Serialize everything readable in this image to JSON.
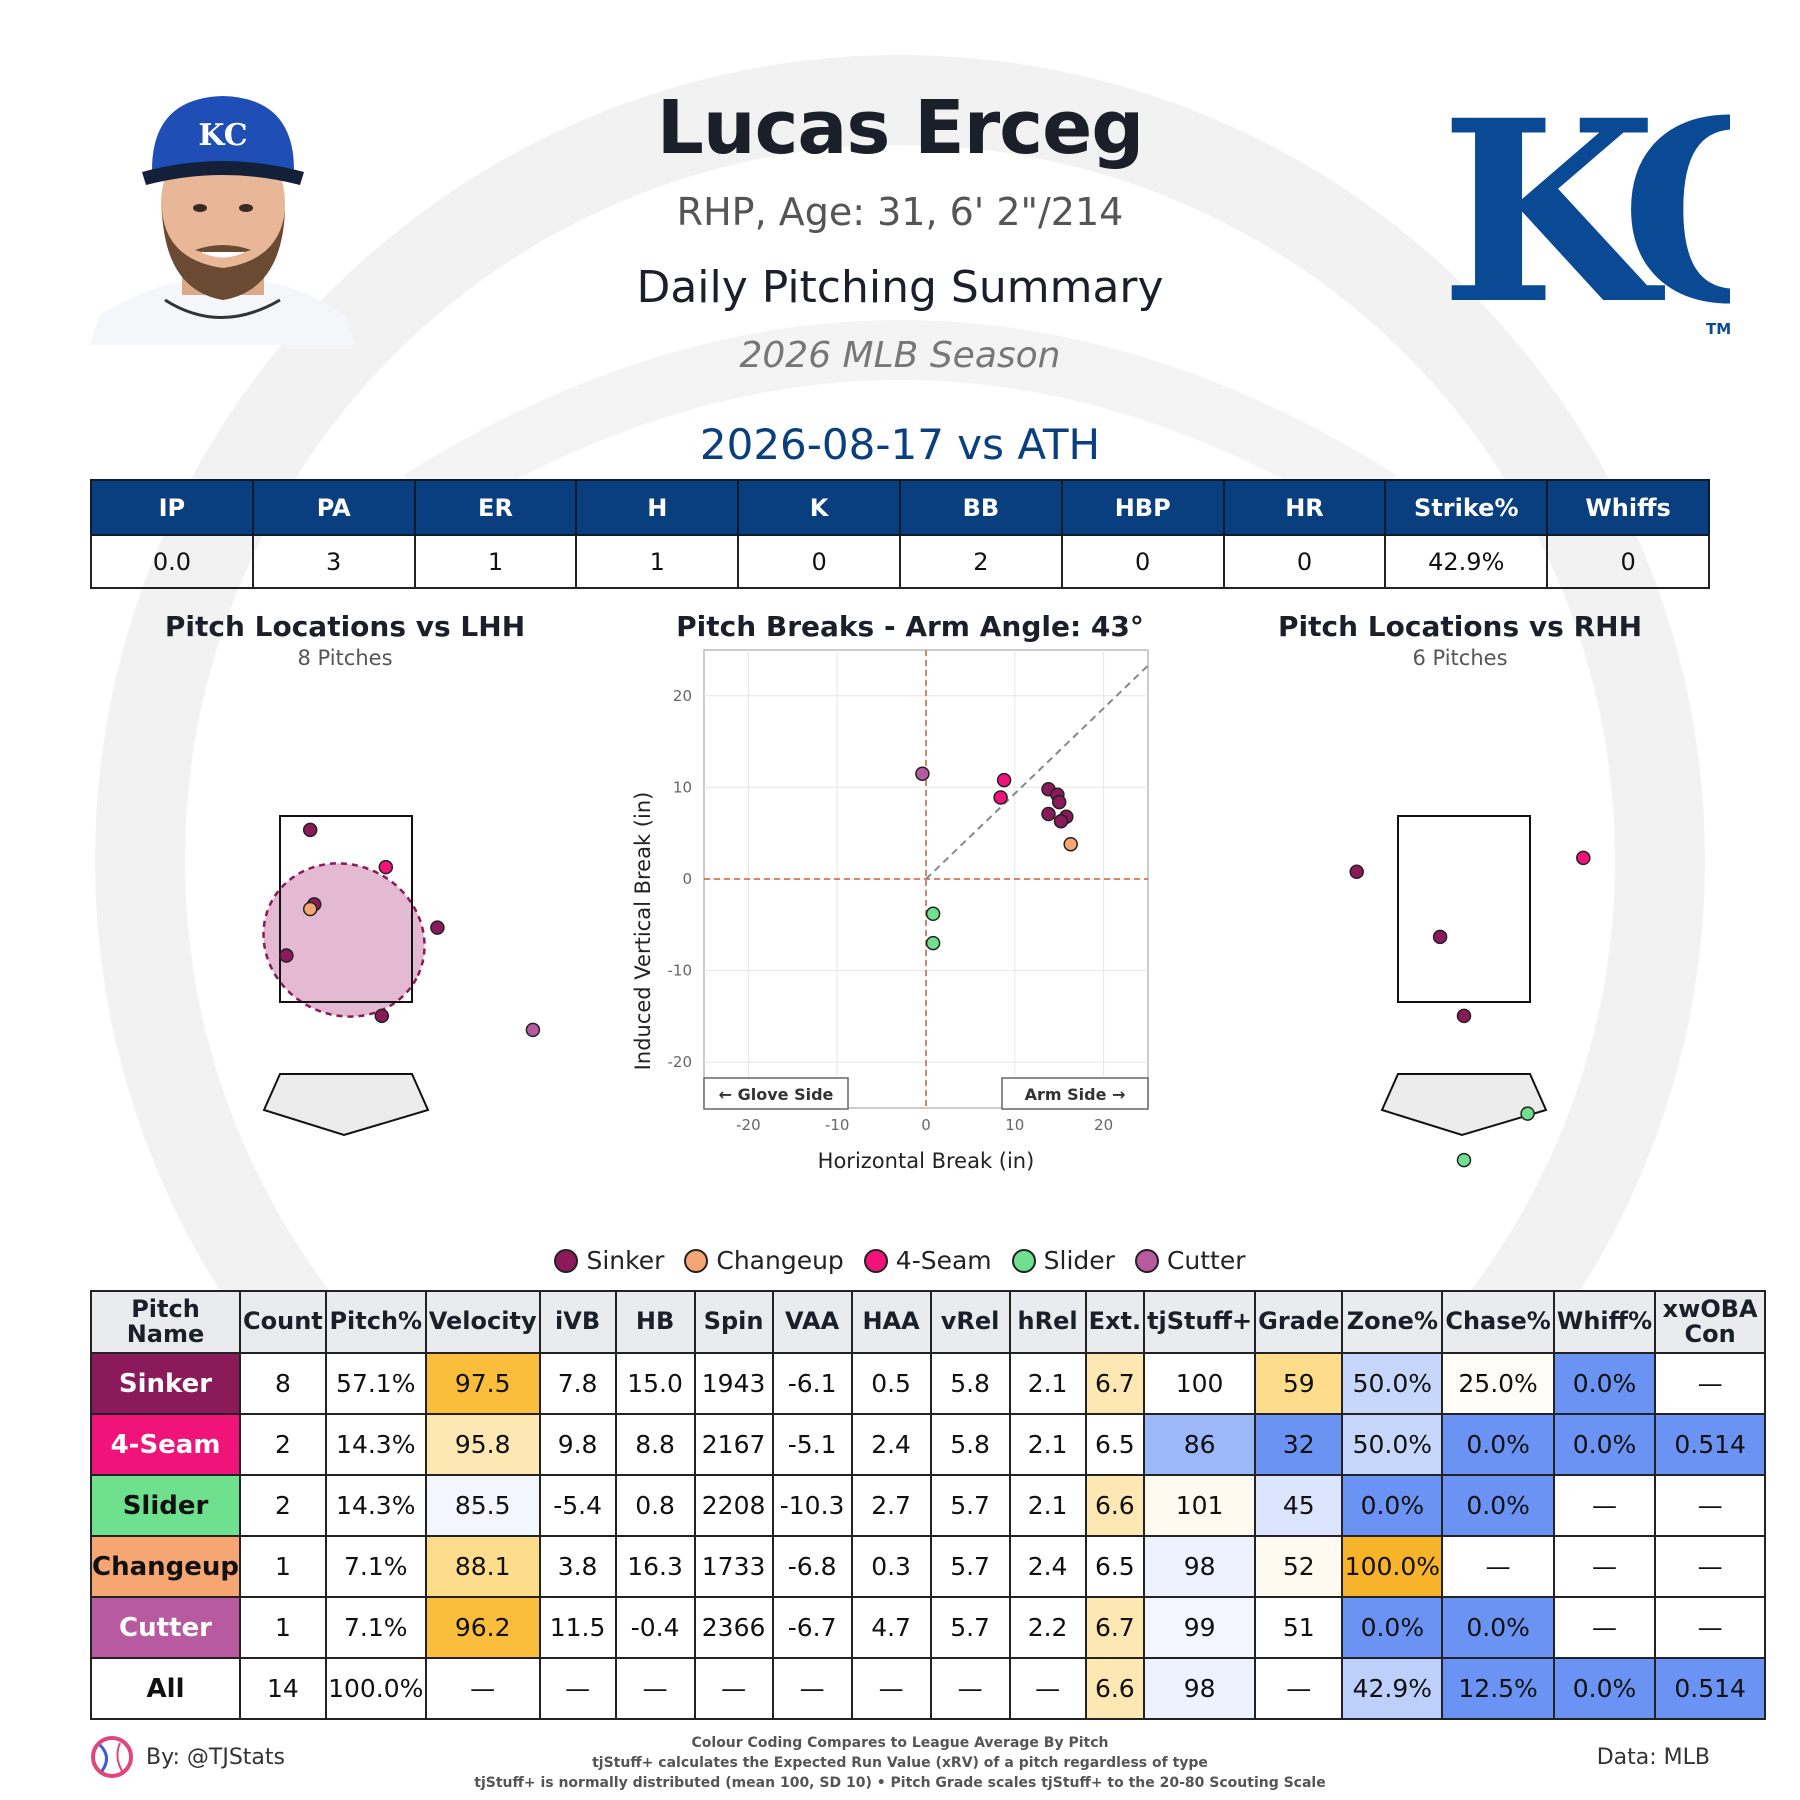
{
  "header": {
    "name": "Lucas Erceg",
    "info": "RHP, Age: 31, 6' 2\"/214",
    "title": "Daily Pitching Summary",
    "season": "2026 MLB Season",
    "game": "2026-08-17 vs ATH",
    "logo_text": "KC",
    "logo_tm": "TM",
    "cap_text": "KC"
  },
  "colors": {
    "primary": "#0a3f7f",
    "sinker": "#8b1a5a",
    "changeup": "#f5a672",
    "fourseam": "#f0147a",
    "slider": "#6fe08e",
    "cutter": "#b85aa0"
  },
  "game_stats": {
    "headers": [
      "IP",
      "PA",
      "ER",
      "H",
      "K",
      "BB",
      "HBP",
      "HR",
      "Strike%",
      "Whiffs"
    ],
    "values": [
      "0.0",
      "3",
      "1",
      "1",
      "0",
      "2",
      "0",
      "0",
      "42.9%",
      "0"
    ]
  },
  "panels": {
    "lhh_title": "Pitch Locations vs LHH",
    "lhh_sub": "8 Pitches",
    "breaks_title": "Pitch Breaks - Arm Angle: 43°",
    "rhh_title": "Pitch Locations vs RHH",
    "rhh_sub": "6 Pitches"
  },
  "chart_data": [
    {
      "type": "scatter",
      "title": "Pitch Locations vs LHH",
      "subtitle": "8 Pitches",
      "points": [
        {
          "pitch": "Sinker",
          "x": -0.45,
          "y": 3.35
        },
        {
          "pitch": "Sinker",
          "x": -0.4,
          "y": 2.55
        },
        {
          "pitch": "Sinker",
          "x": -0.75,
          "y": 2.0
        },
        {
          "pitch": "Sinker",
          "x": 1.15,
          "y": 2.3
        },
        {
          "pitch": "Sinker",
          "x": 0.45,
          "y": 1.35
        },
        {
          "pitch": "4-Seam",
          "x": 0.5,
          "y": 2.95
        },
        {
          "pitch": "Changeup",
          "x": -0.45,
          "y": 2.5
        },
        {
          "pitch": "Cutter",
          "x": 2.35,
          "y": 1.2
        }
      ]
    },
    {
      "type": "scatter",
      "title": "Pitch Breaks - Arm Angle: 43°",
      "xlabel": "Horizontal Break (in)",
      "ylabel": "Induced Vertical Break (in)",
      "xlim": [
        -25,
        25
      ],
      "ylim": [
        -25,
        25
      ],
      "xticks": [
        -20,
        -10,
        0,
        10,
        20
      ],
      "yticks": [
        20,
        10,
        0,
        -10,
        -20
      ],
      "annotations": [
        "← Glove Side",
        "Arm Side →"
      ],
      "points": [
        {
          "pitch": "Cutter",
          "x": -0.4,
          "y": 11.5
        },
        {
          "pitch": "4-Seam",
          "x": 8.8,
          "y": 10.8
        },
        {
          "pitch": "4-Seam",
          "x": 8.4,
          "y": 8.9
        },
        {
          "pitch": "Sinker",
          "x": 13.8,
          "y": 9.8
        },
        {
          "pitch": "Sinker",
          "x": 14.8,
          "y": 9.2
        },
        {
          "pitch": "Sinker",
          "x": 15.0,
          "y": 8.4
        },
        {
          "pitch": "Sinker",
          "x": 15.8,
          "y": 6.8
        },
        {
          "pitch": "Sinker",
          "x": 13.8,
          "y": 7.1
        },
        {
          "pitch": "Sinker",
          "x": 15.2,
          "y": 6.3
        },
        {
          "pitch": "Changeup",
          "x": 16.3,
          "y": 3.8
        },
        {
          "pitch": "Slider",
          "x": 0.8,
          "y": -3.8
        },
        {
          "pitch": "Slider",
          "x": 0.8,
          "y": -7.0
        }
      ]
    },
    {
      "type": "scatter",
      "title": "Pitch Locations vs RHH",
      "subtitle": "6 Pitches",
      "points": [
        {
          "pitch": "Sinker",
          "x": -1.35,
          "y": 2.9
        },
        {
          "pitch": "Sinker",
          "x": -0.3,
          "y": 2.2
        },
        {
          "pitch": "Sinker",
          "x": 0.0,
          "y": 1.35
        },
        {
          "pitch": "4-Seam",
          "x": 1.5,
          "y": 3.05
        },
        {
          "pitch": "Slider",
          "x": 0.8,
          "y": 0.3
        },
        {
          "pitch": "Slider",
          "x": 0.0,
          "y": -0.2
        }
      ]
    }
  ],
  "legend": [
    {
      "label": "Sinker",
      "color": "#8b1a5a"
    },
    {
      "label": "Changeup",
      "color": "#f5a672"
    },
    {
      "label": "4-Seam",
      "color": "#f0147a"
    },
    {
      "label": "Slider",
      "color": "#6fe08e"
    },
    {
      "label": "Cutter",
      "color": "#b85aa0"
    }
  ],
  "pitch_table": {
    "headers": [
      "Pitch Name",
      "Count",
      "Pitch%",
      "Velocity",
      "iVB",
      "HB",
      "Spin",
      "VAA",
      "HAA",
      "vRel",
      "hRel",
      "Ext.",
      "tjStuff+",
      "Grade",
      "Zone%",
      "Chase%",
      "Whiff%",
      "xwOBA Con"
    ],
    "rows": [
      {
        "name": "Sinker",
        "color": "#8b1a5a",
        "dark": false,
        "cells": [
          "8",
          "57.1%",
          "97.5",
          "7.8",
          "15.0",
          "1943",
          "-6.1",
          "0.5",
          "5.8",
          "2.1",
          "6.7",
          "100",
          "59",
          "50.0%",
          "25.0%",
          "0.0%",
          "—"
        ],
        "shades": [
          "#ffffff",
          "#ffffff",
          "#fbbd3c",
          "#ffffff",
          "#ffffff",
          "#ffffff",
          "#ffffff",
          "#ffffff",
          "#ffffff",
          "#ffffff",
          "#fde8b4",
          "#ffffff",
          "#fddc8c",
          "#c7d6fb",
          "#fffdf6",
          "#6a93f4",
          "#ffffff"
        ]
      },
      {
        "name": "4-Seam",
        "color": "#f0147a",
        "dark": false,
        "cells": [
          "2",
          "14.3%",
          "95.8",
          "9.8",
          "8.8",
          "2167",
          "-5.1",
          "2.4",
          "5.8",
          "2.1",
          "6.5",
          "86",
          "32",
          "50.0%",
          "0.0%",
          "0.0%",
          "0.514"
        ],
        "shades": [
          "#ffffff",
          "#ffffff",
          "#fde8b4",
          "#ffffff",
          "#ffffff",
          "#ffffff",
          "#ffffff",
          "#ffffff",
          "#ffffff",
          "#ffffff",
          "#ffffff",
          "#9cb8f8",
          "#6a93f4",
          "#c7d6fb",
          "#6a93f4",
          "#6a93f4",
          "#6a93f4"
        ]
      },
      {
        "name": "Slider",
        "color": "#6fe08e",
        "dark": true,
        "cells": [
          "2",
          "14.3%",
          "85.5",
          "-5.4",
          "0.8",
          "2208",
          "-10.3",
          "2.7",
          "5.7",
          "2.1",
          "6.6",
          "101",
          "45",
          "0.0%",
          "0.0%",
          "—",
          "—"
        ],
        "shades": [
          "#ffffff",
          "#ffffff",
          "#f3f6fe",
          "#ffffff",
          "#ffffff",
          "#ffffff",
          "#ffffff",
          "#ffffff",
          "#ffffff",
          "#ffffff",
          "#fde8b4",
          "#fffaef",
          "#dbe5fd",
          "#6a93f4",
          "#6a93f4",
          "#ffffff",
          "#ffffff"
        ]
      },
      {
        "name": "Changeup",
        "color": "#f5a672",
        "dark": true,
        "cells": [
          "1",
          "7.1%",
          "88.1",
          "3.8",
          "16.3",
          "1733",
          "-6.8",
          "0.3",
          "5.7",
          "2.4",
          "6.5",
          "98",
          "52",
          "100.0%",
          "—",
          "—",
          "—"
        ],
        "shades": [
          "#ffffff",
          "#ffffff",
          "#fddc8c",
          "#ffffff",
          "#ffffff",
          "#ffffff",
          "#ffffff",
          "#ffffff",
          "#ffffff",
          "#ffffff",
          "#ffffff",
          "#edf2fe",
          "#fffaef",
          "#f7b32a",
          "#ffffff",
          "#ffffff",
          "#ffffff"
        ]
      },
      {
        "name": "Cutter",
        "color": "#b85aa0",
        "dark": false,
        "cells": [
          "1",
          "7.1%",
          "96.2",
          "11.5",
          "-0.4",
          "2366",
          "-6.7",
          "4.7",
          "5.7",
          "2.2",
          "6.7",
          "99",
          "51",
          "0.0%",
          "0.0%",
          "—",
          "—"
        ],
        "shades": [
          "#ffffff",
          "#ffffff",
          "#fbbd3c",
          "#ffffff",
          "#ffffff",
          "#ffffff",
          "#ffffff",
          "#ffffff",
          "#ffffff",
          "#ffffff",
          "#fde8b4",
          "#f3f6fe",
          "#ffffff",
          "#6a93f4",
          "#6a93f4",
          "#ffffff",
          "#ffffff"
        ]
      },
      {
        "name": "All",
        "color": "#ffffff",
        "dark": true,
        "cells": [
          "14",
          "100.0%",
          "—",
          "—",
          "—",
          "—",
          "—",
          "—",
          "—",
          "—",
          "6.6",
          "98",
          "—",
          "42.9%",
          "12.5%",
          "0.0%",
          "0.514"
        ],
        "shades": [
          "#ffffff",
          "#ffffff",
          "#ffffff",
          "#ffffff",
          "#ffffff",
          "#ffffff",
          "#ffffff",
          "#ffffff",
          "#ffffff",
          "#ffffff",
          "#fde8b4",
          "#edf2fe",
          "#ffffff",
          "#bcd0fb",
          "#6a93f4",
          "#6a93f4",
          "#6a93f4"
        ]
      }
    ]
  },
  "footer": {
    "by": "By: @TJStats",
    "note1": "Colour Coding Compares to League Average By Pitch",
    "note2": "tjStuff+ calculates the Expected Run Value (xRV) of a pitch regardless of type",
    "note3": "tjStuff+ is normally distributed (mean 100, SD 10) • Pitch Grade scales tjStuff+ to the 20-80 Scouting Scale",
    "source": "Data: MLB"
  }
}
